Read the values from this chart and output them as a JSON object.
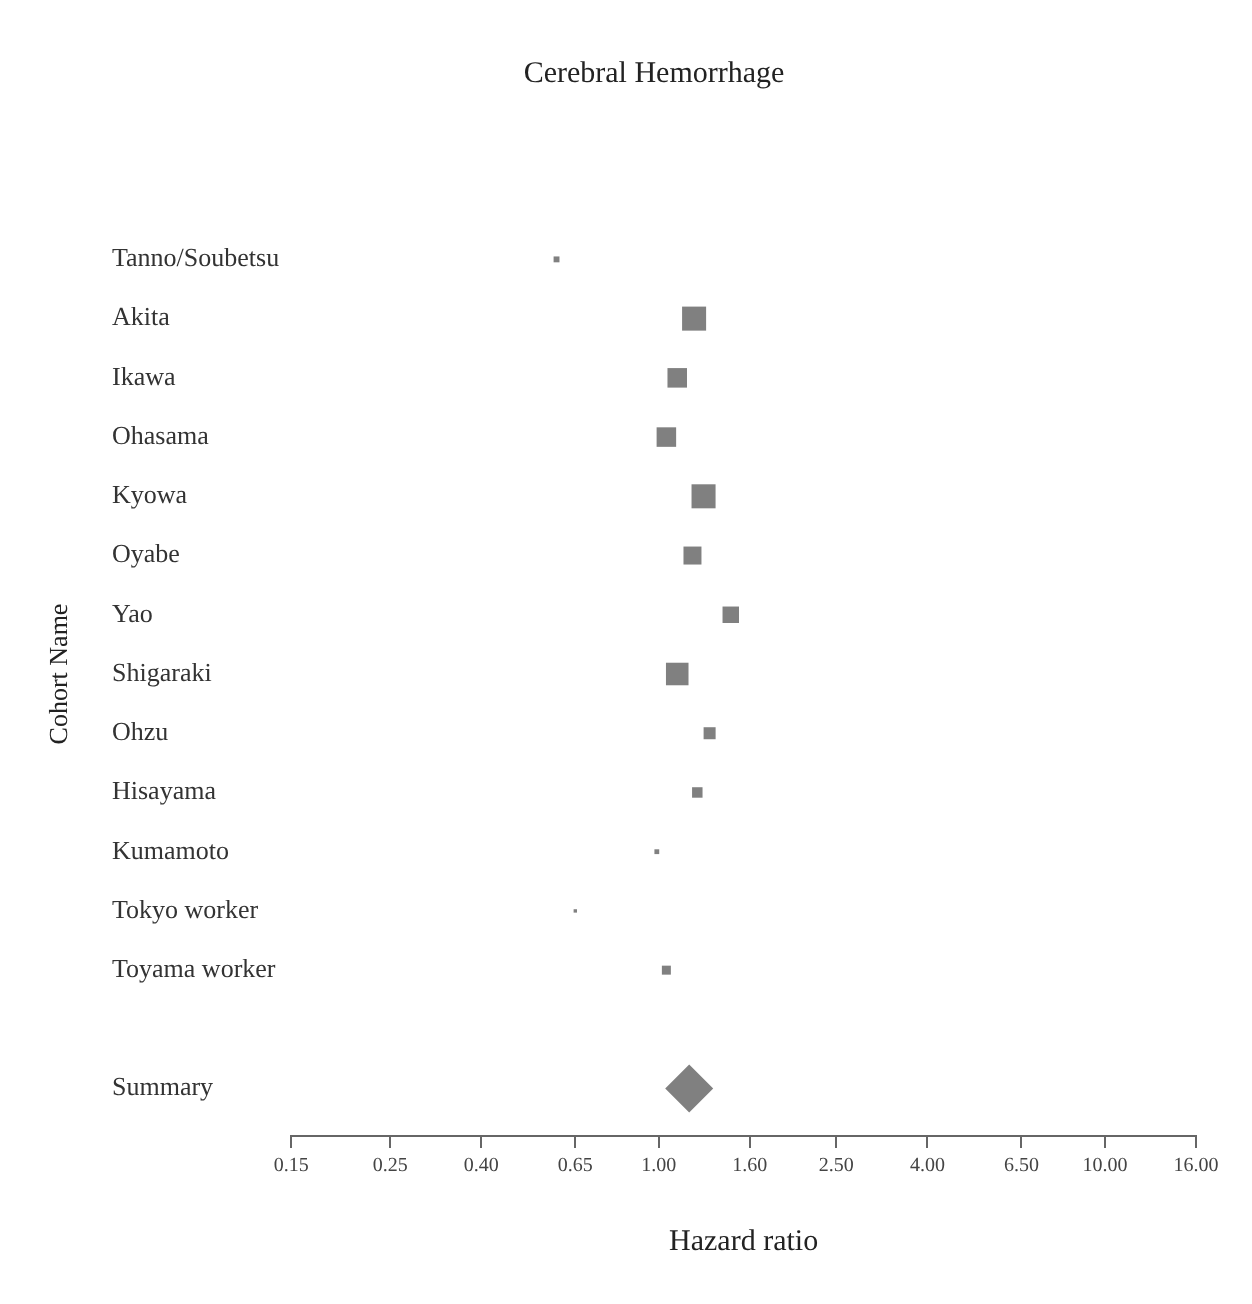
{
  "chart_data": {
    "type": "bubble",
    "orientation": "horizontal",
    "title": "Cerebral Hemorrhage",
    "xlabel": "Hazard ratio",
    "ylabel": "Cohort Name",
    "categories": [
      "Tanno/Soubetsu",
      "Akita",
      "Ikawa",
      "Ohasama",
      "Kyowa",
      "Oyabe",
      "Yao",
      "Shigaraki",
      "Ohzu",
      "Hisayama",
      "Kumamoto",
      "Tokyo worker",
      "Toyama worker",
      null,
      "Summary"
    ],
    "series": [
      {
        "type": "bubble",
        "marker": "square",
        "color": "#808080",
        "values": [
          0.59,
          1.2,
          1.1,
          1.04,
          1.26,
          1.19,
          1.45,
          1.1,
          1.3,
          1.22,
          0.99,
          0.65,
          1.04,
          null,
          null
        ],
        "sizes": [
          0.06,
          1,
          0.66,
          0.66,
          1,
          0.56,
          0.47,
          0.88,
          0.25,
          0.19,
          0.04,
          0.02,
          0.14,
          null,
          null
        ]
      },
      {
        "type": "scatter",
        "marker": "diamond",
        "color": "#808080",
        "values": [
          null,
          null,
          null,
          null,
          null,
          null,
          null,
          null,
          null,
          null,
          null,
          null,
          null,
          null,
          1.17
        ]
      }
    ],
    "log": "x",
    "xlim": [
      0.15,
      16
    ],
    "xticks": [
      0.15,
      0.25,
      {
        "value": 0.4,
        "label": "0.40"
      },
      0.65,
      {
        "value": 1,
        "label": "1.00"
      },
      {
        "value": 1.6,
        "label": "1.60"
      },
      {
        "value": 2.5,
        "label": "2.50"
      },
      {
        "value": 4,
        "label": "4.00"
      },
      {
        "value": 6.5,
        "label": "6.50"
      },
      {
        "value": 10,
        "label": "10.00"
      },
      {
        "value": 16,
        "label": "16.00"
      }
    ],
    "grid": false,
    "legend": false
  }
}
